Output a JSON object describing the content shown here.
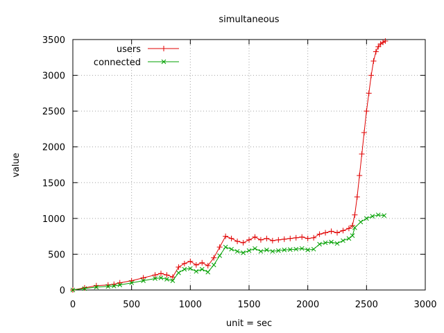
{
  "chart_data": {
    "type": "line",
    "title": "simultaneous",
    "xlabel": "unit = sec",
    "ylabel": "value",
    "xlim": [
      0,
      3000
    ],
    "ylim": [
      0,
      3500
    ],
    "xticks": [
      0,
      500,
      1000,
      1500,
      2000,
      2500,
      3000
    ],
    "yticks": [
      0,
      500,
      1000,
      1500,
      2000,
      2500,
      3000,
      3500
    ],
    "grid": true,
    "legend": "top-left",
    "series": [
      {
        "name": "users",
        "color": "#e00000",
        "marker": "plus",
        "x": [
          0,
          100,
          200,
          300,
          350,
          400,
          500,
          600,
          700,
          750,
          800,
          850,
          900,
          950,
          1000,
          1050,
          1100,
          1150,
          1200,
          1250,
          1300,
          1350,
          1400,
          1450,
          1500,
          1550,
          1600,
          1650,
          1700,
          1750,
          1800,
          1850,
          1900,
          1950,
          2000,
          2050,
          2100,
          2150,
          2200,
          2250,
          2300,
          2350,
          2380,
          2400,
          2420,
          2440,
          2460,
          2480,
          2500,
          2520,
          2540,
          2560,
          2580,
          2600,
          2620,
          2640,
          2660
        ],
        "y": [
          0,
          30,
          60,
          70,
          80,
          100,
          130,
          170,
          210,
          230,
          210,
          180,
          320,
          370,
          400,
          350,
          380,
          340,
          450,
          600,
          750,
          720,
          680,
          660,
          700,
          740,
          700,
          720,
          690,
          700,
          710,
          720,
          730,
          740,
          720,
          730,
          780,
          800,
          820,
          800,
          830,
          860,
          900,
          1050,
          1300,
          1600,
          1900,
          2200,
          2500,
          2750,
          3000,
          3200,
          3330,
          3400,
          3440,
          3460,
          3480
        ]
      },
      {
        "name": "connected",
        "color": "#00a000",
        "marker": "cross",
        "x": [
          0,
          100,
          200,
          300,
          350,
          400,
          500,
          600,
          700,
          750,
          800,
          850,
          900,
          950,
          1000,
          1050,
          1100,
          1150,
          1200,
          1250,
          1300,
          1350,
          1400,
          1450,
          1500,
          1550,
          1600,
          1650,
          1700,
          1750,
          1800,
          1850,
          1900,
          1950,
          2000,
          2050,
          2100,
          2150,
          2200,
          2250,
          2300,
          2350,
          2380,
          2400,
          2450,
          2500,
          2550,
          2600,
          2650
        ],
        "y": [
          0,
          20,
          40,
          50,
          55,
          70,
          100,
          130,
          160,
          170,
          150,
          130,
          240,
          290,
          300,
          260,
          290,
          250,
          350,
          480,
          600,
          570,
          540,
          520,
          550,
          580,
          540,
          560,
          540,
          550,
          560,
          565,
          570,
          580,
          560,
          570,
          640,
          660,
          670,
          650,
          690,
          720,
          760,
          870,
          950,
          1000,
          1030,
          1050,
          1040
        ]
      }
    ]
  }
}
